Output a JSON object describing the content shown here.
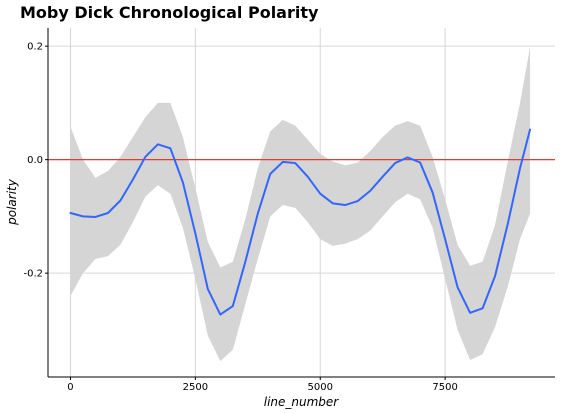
{
  "chart_data": {
    "type": "line",
    "title": "Moby Dick Chronological Polarity",
    "xlabel": "line_number",
    "ylabel": "polarity",
    "xlim": [
      -450,
      9700
    ],
    "ylim": [
      -0.383,
      0.232
    ],
    "x_ticks": [
      0,
      2500,
      5000,
      7500
    ],
    "x_tick_labels": [
      "0",
      "2500",
      "5000",
      "7500"
    ],
    "y_ticks": [
      -0.2,
      0.0,
      0.2
    ],
    "y_tick_labels": [
      "-0.2",
      "0.0",
      "0.2"
    ],
    "grid": true,
    "reference_line": {
      "y": 0.0,
      "color": "#e03c31"
    },
    "series": [
      {
        "color": "#3366ff",
        "band_color": "#d3d3d3",
        "x": [
          0,
          250,
          500,
          750,
          1000,
          1250,
          1500,
          1750,
          2000,
          2250,
          2500,
          2750,
          3000,
          3250,
          3500,
          3750,
          4000,
          4250,
          4500,
          4750,
          5000,
          5250,
          5500,
          5750,
          6000,
          6250,
          6500,
          6750,
          7000,
          7250,
          7500,
          7750,
          8000,
          8250,
          8500,
          8750,
          9000,
          9200
        ],
        "y": [
          -0.094,
          -0.1,
          -0.101,
          -0.094,
          -0.072,
          -0.035,
          0.005,
          0.027,
          0.02,
          -0.04,
          -0.13,
          -0.228,
          -0.273,
          -0.258,
          -0.18,
          -0.095,
          -0.025,
          -0.004,
          -0.006,
          -0.03,
          -0.06,
          -0.077,
          -0.08,
          -0.073,
          -0.055,
          -0.03,
          -0.006,
          0.004,
          -0.005,
          -0.058,
          -0.14,
          -0.225,
          -0.27,
          -0.262,
          -0.205,
          -0.115,
          -0.015,
          0.053
        ],
        "lower": [
          -0.24,
          -0.2,
          -0.175,
          -0.17,
          -0.15,
          -0.11,
          -0.065,
          -0.045,
          -0.06,
          -0.12,
          -0.21,
          -0.31,
          -0.355,
          -0.335,
          -0.255,
          -0.175,
          -0.1,
          -0.08,
          -0.085,
          -0.11,
          -0.14,
          -0.152,
          -0.148,
          -0.14,
          -0.125,
          -0.1,
          -0.075,
          -0.06,
          -0.07,
          -0.12,
          -0.21,
          -0.3,
          -0.353,
          -0.343,
          -0.295,
          -0.225,
          -0.14,
          -0.095
        ],
        "upper": [
          0.058,
          0.0,
          -0.032,
          -0.02,
          0.005,
          0.04,
          0.075,
          0.1,
          0.1,
          0.04,
          -0.05,
          -0.145,
          -0.19,
          -0.18,
          -0.105,
          -0.015,
          0.05,
          0.07,
          0.06,
          0.035,
          0.01,
          -0.003,
          -0.01,
          -0.005,
          0.015,
          0.04,
          0.06,
          0.068,
          0.06,
          0.005,
          -0.07,
          -0.15,
          -0.187,
          -0.18,
          -0.115,
          -0.005,
          0.1,
          0.198
        ]
      }
    ]
  }
}
